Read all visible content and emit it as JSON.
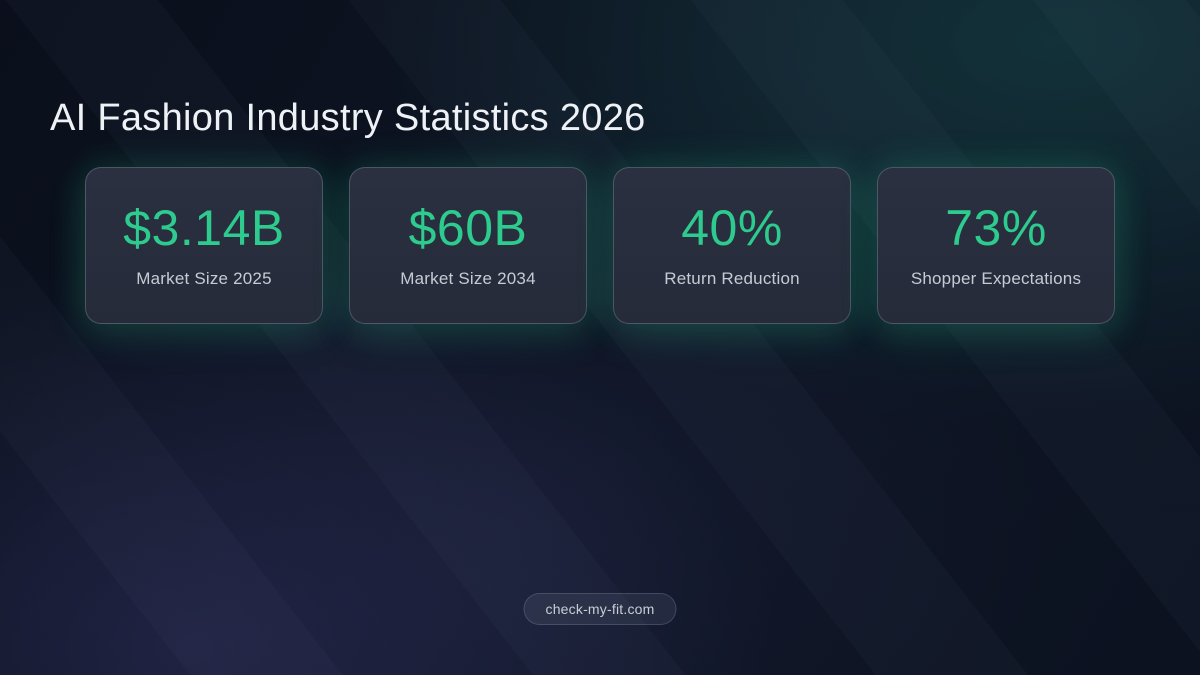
{
  "page": {
    "title": "AI Fashion Industry Statistics 2026"
  },
  "stats": [
    {
      "value": "$3.14B",
      "label": "Market Size 2025"
    },
    {
      "value": "$60B",
      "label": "Market Size 2034"
    },
    {
      "value": "40%",
      "label": "Return Reduction"
    },
    {
      "value": "73%",
      "label": "Shopper Expectations"
    }
  ],
  "footer": {
    "badge_label": "check-my-fit.com"
  },
  "colors": {
    "accent": "#2dcb8e",
    "card_background": "#262c3a",
    "card_border": "rgba(150,164,180,0.35)",
    "card_glow": "rgba(45,212,150,0.16)",
    "title_text": "#eef1f5",
    "label_text": "#c6cbd4",
    "background_base": "#0c1220",
    "background_teal_tint": "#194e4e",
    "background_purple_tint": "#3a3870"
  },
  "chart_data": {
    "type": "table",
    "title": "AI Fashion Industry Statistics 2026",
    "categories": [
      "Market Size 2025",
      "Market Size 2034",
      "Return Reduction",
      "Shopper Expectations"
    ],
    "values": [
      "$3.14B",
      "$60B",
      "40%",
      "73%"
    ],
    "numeric_values": [
      3.14,
      60,
      40,
      73
    ],
    "units": [
      "billion USD",
      "billion USD",
      "percent",
      "percent"
    ],
    "legend_position": "none",
    "grid": false
  }
}
